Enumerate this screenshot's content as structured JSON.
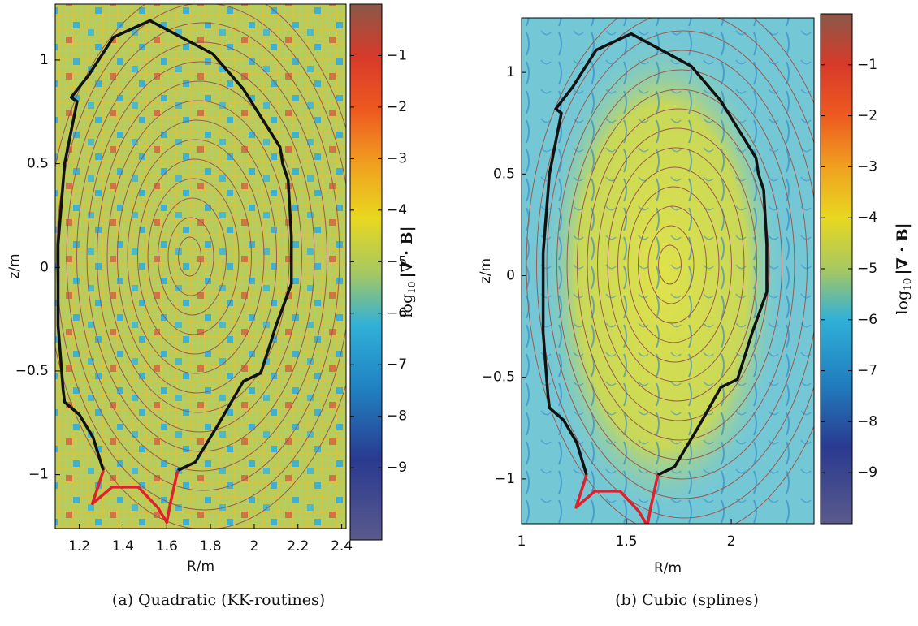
{
  "chart_data": [
    {
      "type": "heatmap",
      "xlabel": "R/m",
      "ylabel": "z/m",
      "caption": "(a) Quadratic (KK-routines)",
      "xlim": [
        1.09,
        2.42
      ],
      "xticks": [
        1.2,
        1.4,
        1.6,
        1.8,
        2,
        2.2,
        2.4
      ],
      "ylim": [
        -1.26,
        1.27
      ],
      "yticks": [
        {
          "value": -1,
          "label": "−1"
        },
        {
          "value": -0.5,
          "label": "−0.5"
        },
        0,
        0.5,
        1
      ],
      "colorbar": {
        "label_base": "log",
        "label_sub": "10",
        "label_rest": "|∇ · B|",
        "lim": [
          -10.4,
          0
        ],
        "ticks": [
          {
            "value": -1,
            "label": "−1"
          },
          {
            "value": -2,
            "label": "−2"
          },
          {
            "value": -3,
            "label": "−3"
          },
          {
            "value": -4,
            "label": "−4"
          },
          {
            "value": -5,
            "label": "−5"
          },
          {
            "value": -6,
            "label": "−6"
          },
          {
            "value": -7,
            "label": "−7"
          },
          {
            "value": -8,
            "label": "−8"
          },
          {
            "value": -9,
            "label": "−9"
          }
        ]
      },
      "lines": [
        {
          "color": "#111111",
          "x": [
            1.31,
            1.263,
            1.2,
            1.133,
            1.126,
            1.103,
            1.103,
            1.133,
            1.19,
            1.163,
            1.245,
            1.356,
            1.523,
            1.81,
            1.95,
            2.118,
            2.13,
            2.155,
            2.17,
            2.17,
            2.1,
            2.03,
            1.95,
            1.84,
            1.73,
            1.65
          ],
          "y": [
            -0.98,
            -0.82,
            -0.71,
            -0.65,
            -0.59,
            -0.28,
            0.11,
            0.5,
            0.8,
            0.82,
            0.93,
            1.11,
            1.19,
            1.03,
            0.86,
            0.58,
            0.5,
            0.42,
            0.15,
            -0.08,
            -0.28,
            -0.51,
            -0.55,
            -0.75,
            -0.94,
            -0.98
          ]
        },
        {
          "color": "#e0202a",
          "x": [
            1.31,
            1.26,
            1.35,
            1.47,
            1.56,
            1.6,
            1.616,
            1.65
          ],
          "y": [
            -0.98,
            -1.14,
            -1.06,
            -1.06,
            -1.16,
            -1.23,
            -1.14,
            -0.98
          ]
        }
      ]
    },
    {
      "type": "heatmap",
      "xlabel": "R/m",
      "ylabel": "z/m",
      "caption": "(b) Cubic (splines)",
      "xlim": [
        1,
        2.395
      ],
      "xticks": [
        1,
        1.5,
        2
      ],
      "ylim": [
        -1.22,
        1.268
      ],
      "yticks": [
        {
          "value": -1,
          "label": "−1"
        },
        {
          "value": -0.5,
          "label": "−0.5"
        },
        0,
        0.5,
        1
      ],
      "colorbar": {
        "label_base": "log",
        "label_sub": "10",
        "label_rest": "|∇ · B|",
        "lim": [
          -10,
          0
        ],
        "ticks": [
          {
            "value": -1,
            "label": "−1"
          },
          {
            "value": -2,
            "label": "−2"
          },
          {
            "value": -3,
            "label": "−3"
          },
          {
            "value": -4,
            "label": "−4"
          },
          {
            "value": -5,
            "label": "−5"
          },
          {
            "value": -6,
            "label": "−6"
          },
          {
            "value": -7,
            "label": "−7"
          },
          {
            "value": -8,
            "label": "−8"
          },
          {
            "value": -9,
            "label": "−9"
          }
        ]
      },
      "lines": [
        {
          "color": "#111111",
          "x": [
            1.31,
            1.263,
            1.2,
            1.133,
            1.126,
            1.103,
            1.103,
            1.133,
            1.19,
            1.163,
            1.245,
            1.356,
            1.523,
            1.81,
            1.95,
            2.118,
            2.13,
            2.155,
            2.17,
            2.17,
            2.1,
            2.03,
            1.95,
            1.84,
            1.73,
            1.65
          ],
          "y": [
            -0.98,
            -0.82,
            -0.71,
            -0.65,
            -0.59,
            -0.28,
            0.11,
            0.5,
            0.8,
            0.82,
            0.93,
            1.11,
            1.19,
            1.03,
            0.86,
            0.58,
            0.5,
            0.42,
            0.15,
            -0.08,
            -0.28,
            -0.51,
            -0.55,
            -0.75,
            -0.94,
            -0.98
          ]
        },
        {
          "color": "#e0202a",
          "x": [
            1.31,
            1.26,
            1.35,
            1.47,
            1.56,
            1.6,
            1.616,
            1.65
          ],
          "y": [
            -0.98,
            -1.14,
            -1.06,
            -1.06,
            -1.16,
            -1.23,
            -1.14,
            -0.98
          ]
        }
      ]
    }
  ]
}
